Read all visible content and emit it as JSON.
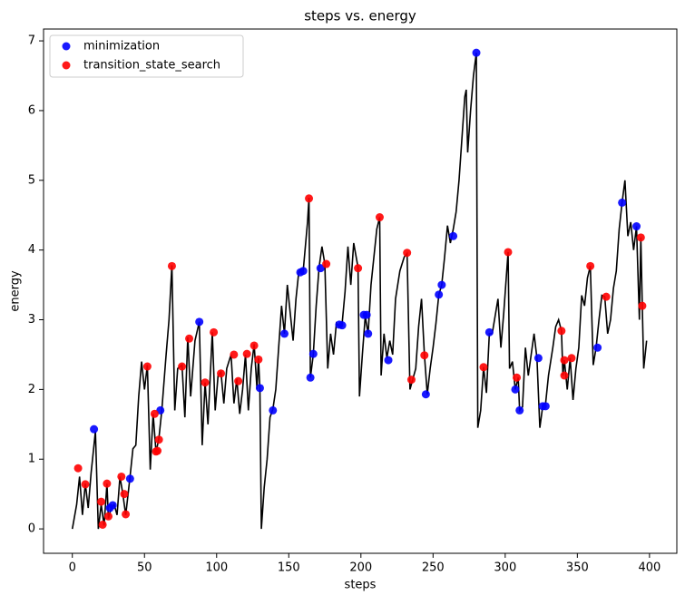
{
  "chart_data": {
    "type": "line",
    "title": "steps vs. energy",
    "xlabel": "steps",
    "ylabel": "energy",
    "color": "#000000",
    "x": [
      0,
      3,
      5,
      7,
      9,
      11,
      13,
      16,
      18,
      20,
      22,
      24,
      25,
      27,
      29,
      31,
      33,
      35,
      37,
      40,
      42,
      44,
      46,
      48,
      50,
      52,
      54,
      56,
      58,
      60,
      62,
      65,
      67,
      69,
      71,
      73,
      76,
      78,
      80,
      82,
      85,
      88,
      90,
      92,
      94,
      97,
      99,
      101,
      103,
      105,
      107,
      110,
      112,
      114,
      116,
      118,
      120,
      122,
      124,
      126,
      128,
      129,
      130,
      131,
      133,
      135,
      137,
      139,
      141,
      143,
      145,
      147,
      149,
      151,
      153,
      155,
      157,
      160,
      163,
      164,
      165,
      167,
      169,
      171,
      173,
      175,
      177,
      179,
      181,
      183,
      185,
      187,
      189,
      191,
      193,
      195,
      198,
      199,
      201,
      203,
      205,
      207,
      209,
      211,
      213,
      214,
      216,
      218,
      220,
      222,
      224,
      227,
      230,
      232,
      234,
      236,
      238,
      240,
      242,
      244,
      246,
      248,
      250,
      252,
      254,
      256,
      258,
      260,
      262,
      264,
      266,
      268,
      270,
      272,
      273,
      274,
      276,
      278,
      280,
      281,
      283,
      285,
      287,
      289,
      291,
      293,
      295,
      297,
      299,
      302,
      303,
      305,
      307,
      309,
      310,
      312,
      314,
      316,
      318,
      320,
      322,
      324,
      326,
      328,
      330,
      333,
      335,
      337,
      339,
      340,
      341,
      343,
      345,
      347,
      349,
      351,
      353,
      355,
      357,
      359,
      361,
      363,
      365,
      367,
      369,
      371,
      373,
      375,
      377,
      379,
      381,
      383,
      385,
      387,
      389,
      391,
      393,
      394,
      395,
      396,
      398
    ],
    "values": [
      0,
      0.35,
      0.75,
      0.2,
      0.65,
      0.3,
      0.8,
      1.4,
      0,
      0.35,
      0.05,
      0.65,
      0.15,
      0.3,
      0.35,
      0.2,
      0.75,
      0.5,
      0.2,
      0.75,
      1.15,
      1.2,
      1.9,
      2.4,
      2.0,
      2.35,
      0.85,
      1.65,
      1.1,
      1.3,
      1.7,
      2.5,
      3.0,
      3.78,
      1.7,
      2.3,
      2.35,
      1.6,
      2.75,
      1.9,
      2.7,
      2.97,
      1.2,
      2.1,
      1.5,
      2.82,
      1.7,
      2.2,
      2.25,
      1.8,
      2.3,
      2.5,
      1.8,
      2.15,
      1.65,
      2.0,
      2.5,
      1.7,
      2.3,
      2.65,
      2.0,
      2.45,
      2.0,
      0,
      0.6,
      1.0,
      1.6,
      1.72,
      2.0,
      2.6,
      3.2,
      2.8,
      3.5,
      3.1,
      2.7,
      3.3,
      3.7,
      3.7,
      4.4,
      4.75,
      2.17,
      2.5,
      3.2,
      3.75,
      4.05,
      3.8,
      2.3,
      2.8,
      2.5,
      2.95,
      2.9,
      2.95,
      3.4,
      4.05,
      3.5,
      4.1,
      3.75,
      1.9,
      2.5,
      3.05,
      2.8,
      3.5,
      3.9,
      4.3,
      4.47,
      2.2,
      2.8,
      2.45,
      2.7,
      2.5,
      3.3,
      3.7,
      3.9,
      3.95,
      2.0,
      2.15,
      2.3,
      2.9,
      3.3,
      2.5,
      1.93,
      2.3,
      2.6,
      2.95,
      3.36,
      3.5,
      3.9,
      4.35,
      4.1,
      4.3,
      4.55,
      5.0,
      5.6,
      6.2,
      6.3,
      5.4,
      6.0,
      6.5,
      6.83,
      1.45,
      1.7,
      2.32,
      1.95,
      2.8,
      2.8,
      3.05,
      3.3,
      2.6,
      3.1,
      3.97,
      2.3,
      2.4,
      2.0,
      2.17,
      1.7,
      1.75,
      2.6,
      2.2,
      2.5,
      2.8,
      2.45,
      1.45,
      1.76,
      1.8,
      2.2,
      2.6,
      2.9,
      3.0,
      2.84,
      2.2,
      2.42,
      2.0,
      2.45,
      1.85,
      2.3,
      2.6,
      3.35,
      3.2,
      3.6,
      3.77,
      2.35,
      2.6,
      3.0,
      3.35,
      3.33,
      2.8,
      3.0,
      3.45,
      3.7,
      4.3,
      4.68,
      5.0,
      4.2,
      4.4,
      4.0,
      4.34,
      3.0,
      4.18,
      3.2,
      2.3,
      2.7
    ],
    "scatter": [
      {
        "name": "minimization",
        "color": "#0000ff",
        "x": [
          15,
          26,
          28,
          40,
          61,
          88,
          130,
          139,
          147,
          158,
          160,
          165,
          167,
          172,
          185,
          187,
          202,
          204,
          205,
          219,
          245,
          254,
          256,
          264,
          280,
          289,
          307,
          310,
          323,
          326,
          328,
          364,
          381,
          391
        ],
        "values": [
          1.43,
          0.3,
          0.34,
          0.72,
          1.7,
          2.97,
          2.02,
          1.7,
          2.8,
          3.68,
          3.7,
          2.17,
          2.51,
          3.74,
          2.93,
          2.92,
          3.07,
          3.07,
          2.8,
          2.42,
          1.93,
          3.36,
          3.5,
          4.2,
          6.83,
          2.82,
          2.0,
          1.7,
          2.45,
          1.76,
          1.76,
          2.6,
          4.68,
          4.34
        ]
      },
      {
        "name": "transition_state_search",
        "color": "#ff0000",
        "x": [
          4,
          9,
          20,
          21,
          24,
          25,
          34,
          36,
          37,
          52,
          57,
          58,
          59,
          60,
          69,
          76,
          81,
          92,
          98,
          103,
          112,
          115,
          121,
          126,
          129,
          164,
          176,
          198,
          213,
          232,
          235,
          244,
          285,
          302,
          308,
          339,
          341,
          341,
          346,
          359,
          370,
          394,
          395
        ],
        "values": [
          0.87,
          0.64,
          0.39,
          0.06,
          0.65,
          0.18,
          0.75,
          0.5,
          0.21,
          2.33,
          1.65,
          1.11,
          1.12,
          1.28,
          3.77,
          2.33,
          2.73,
          2.1,
          2.82,
          2.23,
          2.5,
          2.12,
          2.51,
          2.63,
          2.43,
          4.74,
          3.8,
          3.74,
          4.47,
          3.96,
          2.14,
          2.49,
          2.32,
          3.97,
          2.17,
          2.84,
          2.42,
          2.2,
          2.45,
          3.77,
          3.33,
          4.18,
          3.2
        ]
      }
    ],
    "xlim": [
      -19.95,
      418.95
    ],
    "ylim": [
      -0.35,
      7.17
    ],
    "xticks": [
      0,
      50,
      100,
      150,
      200,
      250,
      300,
      350,
      400
    ],
    "yticks": [
      0,
      1,
      2,
      3,
      4,
      5,
      6,
      7
    ],
    "legend": "upper left"
  }
}
